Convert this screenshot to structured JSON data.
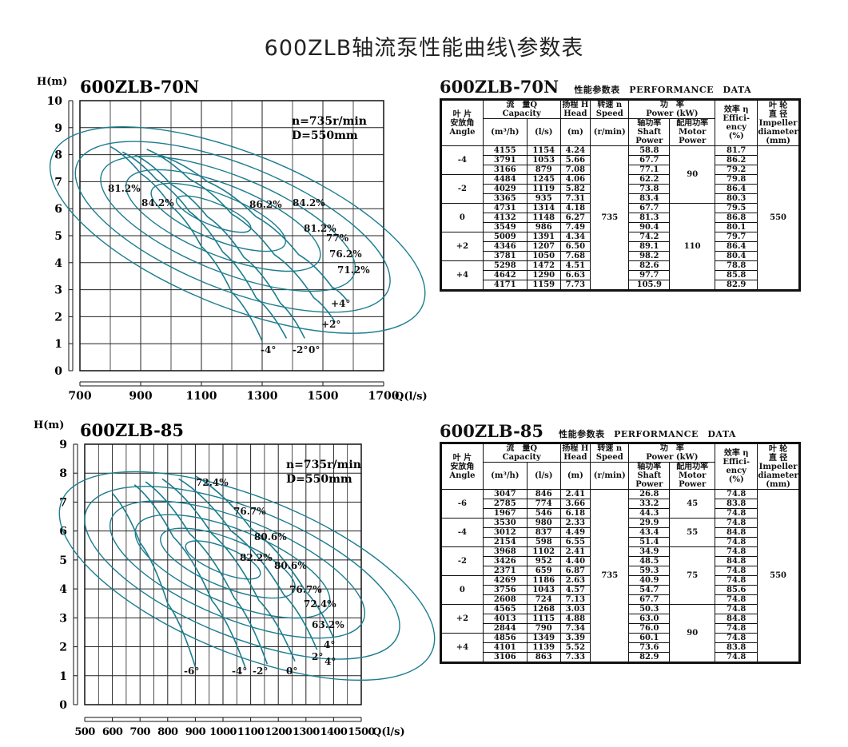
{
  "page_title": "600ZLB轴流泵性能曲线\\参数表",
  "chart_data": [
    {
      "type": "line",
      "title": "600ZLB-70N",
      "ylabel": "H(m)",
      "xlabel": "Q(l/s)",
      "xlim": [
        700,
        1700
      ],
      "ylim": [
        0,
        10
      ],
      "x_ticks": [
        700,
        900,
        1100,
        1300,
        1500,
        1700
      ],
      "y_ticks": [
        0,
        1,
        2,
        3,
        4,
        5,
        6,
        7,
        8,
        9,
        10
      ],
      "grid": true,
      "annotation_lines": [
        "n=735r/min",
        "D=550mm"
      ],
      "efficiency_labels": [
        "81.2%",
        "84.2%",
        "86.2%",
        "84.2%",
        "81.2%",
        "77%",
        "76.2%",
        "71.2%"
      ],
      "angle_labels": [
        "-4°",
        "-2°",
        "0°",
        "+2°",
        "+4°"
      ],
      "series": [
        {
          "label": "-4°",
          "x": [
            800,
            900,
            1000,
            1100,
            1200,
            1300
          ],
          "y": [
            8.3,
            7.3,
            6.1,
            4.6,
            2.9,
            1.1
          ]
        },
        {
          "label": "-2°",
          "x": [
            840,
            950,
            1060,
            1170,
            1280,
            1380
          ],
          "y": [
            8.1,
            7.1,
            5.9,
            4.4,
            2.7,
            1.2
          ]
        },
        {
          "label": "0°",
          "x": [
            880,
            1000,
            1120,
            1240,
            1360,
            1440
          ],
          "y": [
            8.0,
            6.9,
            5.7,
            4.2,
            2.5,
            1.2
          ]
        },
        {
          "label": "+2°",
          "x": [
            920,
            1060,
            1200,
            1340,
            1470,
            1540
          ],
          "y": [
            8.2,
            7.1,
            5.8,
            4.3,
            2.7,
            1.8
          ]
        },
        {
          "label": "+4°",
          "x": [
            960,
            1120,
            1280,
            1420,
            1530,
            1580
          ],
          "y": [
            8.0,
            7.0,
            5.7,
            4.3,
            3.1,
            2.6
          ]
        }
      ]
    },
    {
      "type": "line",
      "title": "600ZLB-85",
      "ylabel": "H(m)",
      "xlabel": "Q(l/s)",
      "xlim": [
        500,
        1500
      ],
      "ylim": [
        0,
        9
      ],
      "x_ticks": [
        500,
        600,
        700,
        800,
        900,
        1000,
        1100,
        1200,
        1300,
        1400,
        1500
      ],
      "y_ticks": [
        0,
        1,
        2,
        3,
        4,
        5,
        6,
        7,
        8,
        9
      ],
      "grid": true,
      "annotation_lines": [
        "n=735r/min",
        "D=550mm"
      ],
      "efficiency_labels": [
        "72.4%",
        "76.7%",
        "80.6%",
        "82.2%",
        "80.6%",
        "76.7%",
        "72.4%",
        "63.2%"
      ],
      "angle_labels": [
        "-6°",
        "-4°",
        "-2°",
        "0°",
        "2°",
        "4°",
        "4°"
      ],
      "series": [
        {
          "label": "-6°",
          "x": [
            600,
            700,
            800,
            900
          ],
          "y": [
            7.3,
            5.6,
            3.5,
            1.3
          ]
        },
        {
          "label": "-4°",
          "x": [
            680,
            820,
            960,
            1080
          ],
          "y": [
            7.6,
            5.8,
            3.6,
            1.3
          ]
        },
        {
          "label": "-2°",
          "x": [
            720,
            880,
            1040,
            1160
          ],
          "y": [
            7.7,
            5.9,
            3.7,
            1.4
          ]
        },
        {
          "label": "0°",
          "x": [
            780,
            960,
            1130,
            1260
          ],
          "y": [
            7.8,
            5.9,
            3.6,
            1.5
          ]
        },
        {
          "label": "2°",
          "x": [
            840,
            1030,
            1220,
            1340
          ],
          "y": [
            7.8,
            6.0,
            3.8,
            1.9
          ]
        },
        {
          "label": "4°",
          "x": [
            900,
            1100,
            1300,
            1400
          ],
          "y": [
            7.9,
            6.1,
            3.9,
            2.3
          ]
        }
      ]
    }
  ],
  "tables": [
    {
      "model": "600ZLB-70N",
      "subtitle": "性能参数表　PERFORMANCE　DATA",
      "headers": {
        "angle": [
          "叶 片",
          "安放角",
          "Angle"
        ],
        "flow": [
          "流　量Q",
          "Capacity"
        ],
        "flow_m3h": "(m³/h)",
        "flow_ls": "(l/s)",
        "head": [
          "扬程 H",
          "Head",
          "(m)"
        ],
        "speed": [
          "转速 n",
          "Speed",
          "(r/min)"
        ],
        "power": [
          "功　率",
          "Power (kW)"
        ],
        "shaft": [
          "轴功率",
          "Shaft",
          "Power"
        ],
        "motor": [
          "配用功率",
          "Motor",
          "Power"
        ],
        "eff": [
          "效率 η",
          "Effici-",
          "ency",
          "(%)"
        ],
        "imp": [
          "叶 轮",
          "直 径",
          "Impeller",
          "diameter",
          "(mm)"
        ]
      },
      "speed_value": "735",
      "impeller_value": "550",
      "motor_groups": [
        {
          "value": "90",
          "rows": 6
        },
        {
          "value": "110",
          "rows": 9
        }
      ],
      "groups": [
        {
          "angle": "-4",
          "rows": [
            [
              "4155",
              "1154",
              "4.24",
              "58.8",
              "81.7"
            ],
            [
              "3791",
              "1053",
              "5.66",
              "67.7",
              "86.2"
            ],
            [
              "3166",
              "879",
              "7.08",
              "77.1",
              "79.2"
            ]
          ]
        },
        {
          "angle": "-2",
          "rows": [
            [
              "4484",
              "1245",
              "4.06",
              "62.2",
              "79.8"
            ],
            [
              "4029",
              "1119",
              "5.82",
              "73.8",
              "86.4"
            ],
            [
              "3365",
              "935",
              "7.31",
              "83.4",
              "80.3"
            ]
          ]
        },
        {
          "angle": "0",
          "rows": [
            [
              "4731",
              "1314",
              "4.18",
              "67.7",
              "79.5"
            ],
            [
              "4132",
              "1148",
              "6.27",
              "81.3",
              "86.8"
            ],
            [
              "3549",
              "986",
              "7.49",
              "90.4",
              "80.1"
            ]
          ]
        },
        {
          "angle": "+2",
          "rows": [
            [
              "5009",
              "1391",
              "4.34",
              "74.2",
              "79.7"
            ],
            [
              "4346",
              "1207",
              "6.50",
              "89.1",
              "86.4"
            ],
            [
              "3781",
              "1050",
              "7.68",
              "98.2",
              "80.4"
            ]
          ]
        },
        {
          "angle": "+4",
          "rows": [
            [
              "5298",
              "1472",
              "4.51",
              "82.6",
              "78.8"
            ],
            [
              "4642",
              "1290",
              "6.63",
              "97.7",
              "85.8"
            ],
            [
              "4171",
              "1159",
              "7.73",
              "105.9",
              "82.9"
            ]
          ]
        }
      ]
    },
    {
      "model": "600ZLB-85",
      "subtitle": "性能参数表　PERFORMANCE　DATA",
      "headers": {
        "angle": [
          "叶 片",
          "安放角",
          "Angle"
        ],
        "flow": [
          "流　量Q",
          "Capacity"
        ],
        "flow_m3h": "(m³/h)",
        "flow_ls": "(l/s)",
        "head": [
          "扬程 H",
          "Head",
          "(m)"
        ],
        "speed": [
          "转速 n",
          "Speed",
          "(r/min)"
        ],
        "power": [
          "功　率",
          "Power (kW)"
        ],
        "shaft": [
          "轴功率",
          "Shaft",
          "Power"
        ],
        "motor": [
          "配用功率",
          "Motor",
          "Power"
        ],
        "eff": [
          "效率 η",
          "Effici-",
          "ency",
          "(%)"
        ],
        "imp": [
          "叶 轮",
          "直 径",
          "Impeller",
          "diameter",
          "(mm)"
        ]
      },
      "speed_value": "735",
      "impeller_value": "550",
      "motor_groups": [
        {
          "value": "45",
          "rows": 3
        },
        {
          "value": "55",
          "rows": 3
        },
        {
          "value": "75",
          "rows": 6
        },
        {
          "value": "90",
          "rows": 6
        }
      ],
      "groups": [
        {
          "angle": "-6",
          "rows": [
            [
              "3047",
              "846",
              "2.41",
              "26.8",
              "74.8"
            ],
            [
              "2785",
              "774",
              "3.66",
              "33.2",
              "83.8"
            ],
            [
              "1967",
              "546",
              "6.18",
              "44.3",
              "74.8"
            ]
          ]
        },
        {
          "angle": "-4",
          "rows": [
            [
              "3530",
              "980",
              "2.33",
              "29.9",
              "74.8"
            ],
            [
              "3012",
              "837",
              "4.49",
              "43.4",
              "84.8"
            ],
            [
              "2154",
              "598",
              "6.55",
              "51.4",
              "74.8"
            ]
          ]
        },
        {
          "angle": "-2",
          "rows": [
            [
              "3968",
              "1102",
              "2.41",
              "34.9",
              "74.8"
            ],
            [
              "3426",
              "952",
              "4.40",
              "48.5",
              "84.8"
            ],
            [
              "2371",
              "659",
              "6.87",
              "59.3",
              "74.8"
            ]
          ]
        },
        {
          "angle": "0",
          "rows": [
            [
              "4269",
              "1186",
              "2.63",
              "40.9",
              "74.8"
            ],
            [
              "3756",
              "1043",
              "4.57",
              "54.7",
              "85.6"
            ],
            [
              "2608",
              "724",
              "7.13",
              "67.7",
              "74.8"
            ]
          ]
        },
        {
          "angle": "+2",
          "rows": [
            [
              "4565",
              "1268",
              "3.03",
              "50.3",
              "74.8"
            ],
            [
              "4013",
              "1115",
              "4.88",
              "63.0",
              "84.8"
            ],
            [
              "2844",
              "790",
              "7.34",
              "76.0",
              "74.8"
            ]
          ]
        },
        {
          "angle": "+4",
          "rows": [
            [
              "4856",
              "1349",
              "3.39",
              "60.1",
              "74.8"
            ],
            [
              "4101",
              "1139",
              "5.52",
              "73.6",
              "83.8"
            ],
            [
              "3106",
              "863",
              "7.33",
              "82.9",
              "74.8"
            ]
          ]
        }
      ]
    }
  ]
}
